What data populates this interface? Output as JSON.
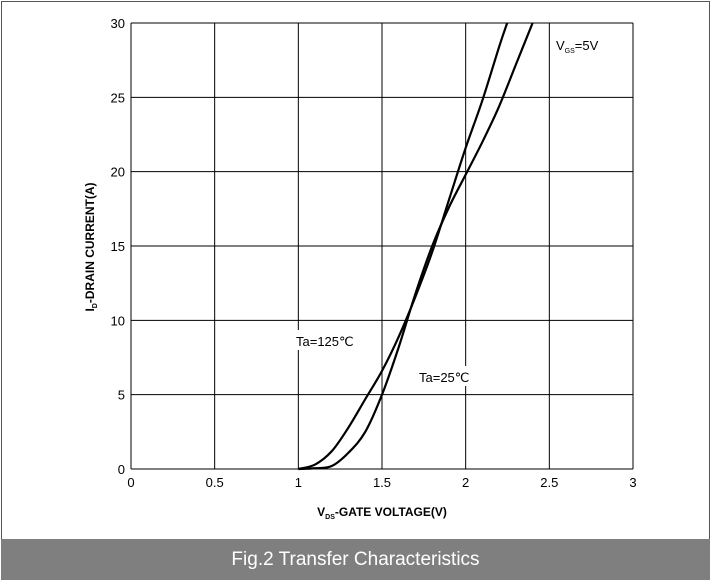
{
  "chart_data": {
    "type": "line",
    "title": "Fig.2 Transfer Characteristics",
    "xlabel": {
      "main": "V",
      "sub": "DS",
      "rest": "-GATE VOLTAGE(V)"
    },
    "ylabel": {
      "main": "I",
      "sub": "D",
      "rest": "-DRAIN CURRENT(A)"
    },
    "xlim": [
      0,
      3
    ],
    "ylim": [
      0,
      30
    ],
    "xticks": [
      "0",
      "0.5",
      "1",
      "1.5",
      "2",
      "2.5",
      "3"
    ],
    "yticks": [
      "0",
      "5",
      "10",
      "15",
      "20",
      "25",
      "30"
    ],
    "grid": true,
    "series": [
      {
        "name": "Ta=125°C",
        "x": [
          1.0,
          1.1,
          1.2,
          1.3,
          1.4,
          1.5,
          1.6,
          1.7,
          1.8,
          1.9,
          2.0,
          2.1,
          2.2,
          2.248
        ],
        "y": [
          0,
          0.3,
          1.2,
          2.8,
          4.7,
          6.6,
          8.9,
          11.6,
          14.6,
          18.1,
          21.6,
          24.8,
          28.4,
          30
        ]
      },
      {
        "name": "Ta=25°C",
        "x": [
          1.0,
          1.1,
          1.2,
          1.3,
          1.4,
          1.5,
          1.6,
          1.7,
          1.8,
          1.9,
          2.0,
          2.1,
          2.2,
          2.3,
          2.4
        ],
        "y": [
          0,
          0.05,
          0.2,
          1.1,
          2.5,
          5.0,
          8.2,
          11.8,
          15.0,
          17.6,
          19.8,
          22.0,
          24.4,
          27.2,
          30
        ]
      }
    ],
    "annotations": {
      "ta125": "Ta=125℃",
      "ta25": "Ta=25℃",
      "vgs": {
        "main": "V",
        "sub": "GS",
        "rest": "=5V"
      }
    },
    "colors": {
      "line": "#000000",
      "grid": "#000000",
      "caption_bg": "#7f7f7f",
      "caption_fg": "#ffffff"
    }
  }
}
